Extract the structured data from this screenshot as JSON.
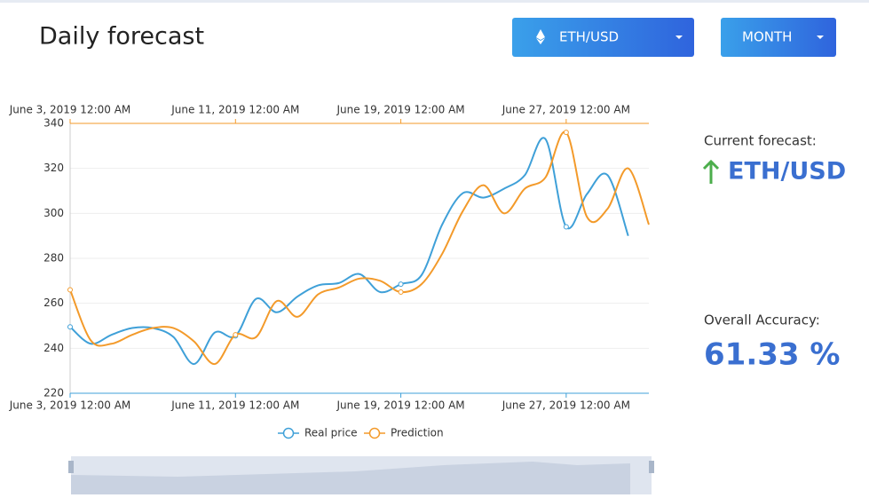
{
  "header": {
    "title": "Daily forecast",
    "pair_button": "ETH/USD",
    "period_button": "MONTH"
  },
  "chart_data": {
    "type": "line",
    "x": [
      "2019-06-03",
      "2019-06-04",
      "2019-06-05",
      "2019-06-06",
      "2019-06-07",
      "2019-06-08",
      "2019-06-09",
      "2019-06-10",
      "2019-06-11",
      "2019-06-12",
      "2019-06-13",
      "2019-06-14",
      "2019-06-15",
      "2019-06-16",
      "2019-06-17",
      "2019-06-18",
      "2019-06-19",
      "2019-06-20",
      "2019-06-21",
      "2019-06-22",
      "2019-06-23",
      "2019-06-24",
      "2019-06-25",
      "2019-06-26",
      "2019-06-27",
      "2019-06-28",
      "2019-06-29",
      "2019-06-30",
      "2019-07-01"
    ],
    "series": [
      {
        "name": "Real price",
        "color": "#3fa0d8",
        "values": [
          249.5,
          242,
          246,
          249,
          249,
          245,
          233,
          247,
          245.5,
          262,
          256,
          263,
          268,
          269,
          273,
          265,
          268.5,
          272.5,
          295,
          309,
          307,
          311,
          317,
          333,
          294,
          308.5,
          317,
          290,
          null
        ]
      },
      {
        "name": "Prediction",
        "color": "#f39a2a",
        "values": [
          266,
          243.5,
          242,
          246,
          249,
          249,
          243,
          233,
          246,
          245,
          261,
          254,
          264,
          267,
          271,
          270,
          265,
          268.5,
          282,
          301,
          312.5,
          300,
          311,
          316,
          336,
          298.5,
          302,
          320,
          295
        ]
      }
    ],
    "xlim": [
      "2019-06-03",
      "2019-07-01"
    ],
    "xticks": [
      {
        "value": "2019-06-03",
        "label": "June 3, 2019 12:00 AM"
      },
      {
        "value": "2019-06-11",
        "label": "June 11, 2019 12:00 AM"
      },
      {
        "value": "2019-06-19",
        "label": "June 19, 2019 12:00 AM"
      },
      {
        "value": "2019-06-27",
        "label": "June 27, 2019 12:00 AM"
      }
    ],
    "ylim": [
      220,
      340
    ],
    "yticks": [
      220,
      240,
      260,
      280,
      300,
      320,
      340
    ],
    "grid": true
  },
  "side": {
    "forecast_label": "Current forecast:",
    "forecast_pair": "ETH/USD",
    "accuracy_label": "Overall Accuracy:",
    "accuracy_value": "61.33 %"
  }
}
